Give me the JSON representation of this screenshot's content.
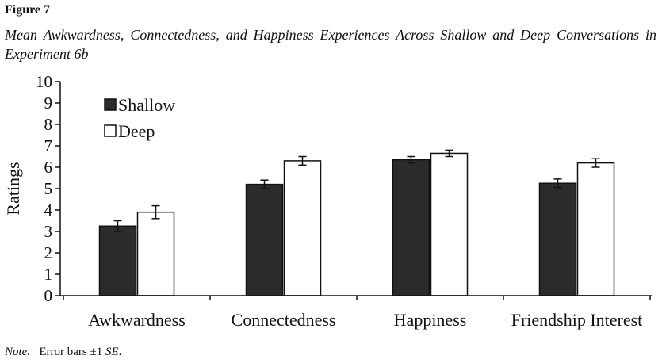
{
  "figure_label": "Figure 7",
  "figure_title": "Mean Awkwardness, Connectedness, and Happiness Experiences Across Shallow and Deep Conversations in Experiment 6b",
  "note": {
    "label": "Note.",
    "text_before": "Error bars ±1 ",
    "italic": "SE",
    "text_after": "."
  },
  "colors": {
    "shallow": "#2b2b2b",
    "deep": "#ffffff",
    "axis": "#111111"
  },
  "chart_data": {
    "type": "bar",
    "title": "",
    "xlabel": "",
    "ylabel": "Ratings",
    "ylim": [
      0,
      10
    ],
    "yticks": [
      0,
      1,
      2,
      3,
      4,
      5,
      6,
      7,
      8,
      9,
      10
    ],
    "categories": [
      "Awkwardness",
      "Connectedness",
      "Happiness",
      "Friendship Interest"
    ],
    "series": [
      {
        "name": "Shallow",
        "values": [
          3.25,
          5.2,
          6.35,
          5.25
        ],
        "error": [
          0.25,
          0.2,
          0.15,
          0.2
        ]
      },
      {
        "name": "Deep",
        "values": [
          3.9,
          6.3,
          6.65,
          6.2
        ],
        "error": [
          0.3,
          0.2,
          0.15,
          0.2
        ]
      }
    ],
    "legend_position": "top-left",
    "grid": false
  }
}
